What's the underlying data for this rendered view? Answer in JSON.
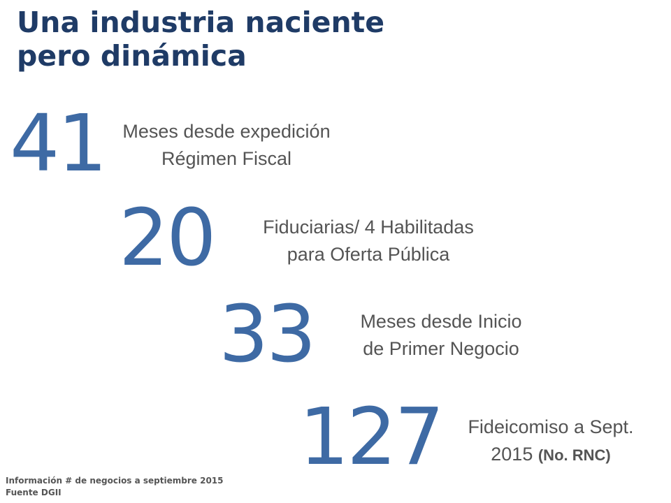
{
  "title": {
    "line1": "Una industria naciente",
    "line2": "pero dinámica"
  },
  "stats": [
    {
      "number": "41",
      "desc_line1": "Meses desde expedición",
      "desc_line2": "Régimen Fiscal"
    },
    {
      "number": "20",
      "desc_line1": "Fiduciarias/ 4 Habilitadas",
      "desc_line2": "para Oferta Pública"
    },
    {
      "number": "33",
      "desc_line1": "Meses desde Inicio",
      "desc_line2": "de Primer Negocio"
    },
    {
      "number": "127",
      "desc_line1": "Fideicomiso a Sept.",
      "desc_line2": "2015",
      "desc_line2_suffix": "(No. RNC)"
    }
  ],
  "footnote": {
    "line1": "Información # de negocios a septiembre 2015",
    "line2": "Fuente DGII"
  },
  "colors": {
    "title": "#1f3b66",
    "number": "#3e6aa4",
    "description": "#545454",
    "footnote": "#555555"
  }
}
